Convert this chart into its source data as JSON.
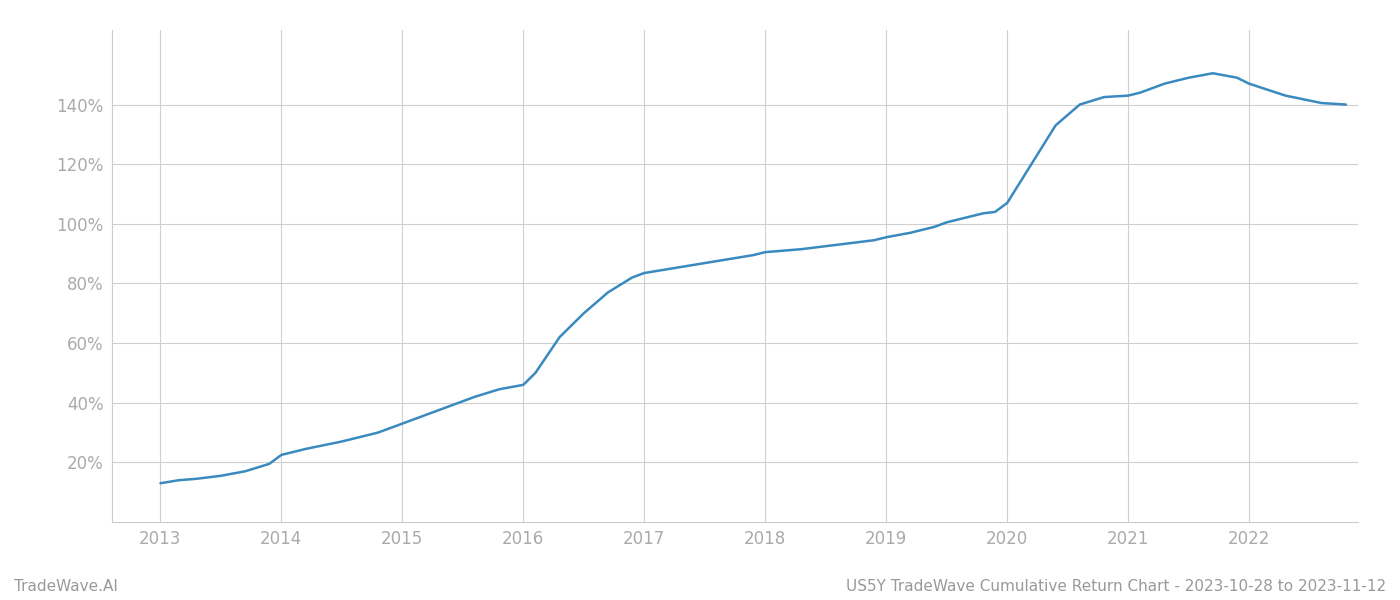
{
  "x_years": [
    2013.0,
    2013.15,
    2013.3,
    2013.5,
    2013.7,
    2013.9,
    2014.0,
    2014.2,
    2014.5,
    2014.8,
    2015.0,
    2015.2,
    2015.4,
    2015.6,
    2015.8,
    2016.0,
    2016.1,
    2016.2,
    2016.3,
    2016.5,
    2016.7,
    2016.9,
    2017.0,
    2017.3,
    2017.6,
    2017.9,
    2018.0,
    2018.3,
    2018.6,
    2018.9,
    2019.0,
    2019.2,
    2019.4,
    2019.5,
    2019.6,
    2019.7,
    2019.8,
    2019.9,
    2020.0,
    2020.2,
    2020.4,
    2020.6,
    2020.8,
    2021.0,
    2021.1,
    2021.2,
    2021.3,
    2021.5,
    2021.7,
    2021.9,
    2022.0,
    2022.3,
    2022.6,
    2022.8
  ],
  "y_values": [
    13.0,
    14.0,
    14.5,
    15.5,
    17.0,
    19.5,
    22.5,
    24.5,
    27.0,
    30.0,
    33.0,
    36.0,
    39.0,
    42.0,
    44.5,
    46.0,
    50.0,
    56.0,
    62.0,
    70.0,
    77.0,
    82.0,
    83.5,
    85.5,
    87.5,
    89.5,
    90.5,
    91.5,
    93.0,
    94.5,
    95.5,
    97.0,
    99.0,
    100.5,
    101.5,
    102.5,
    103.5,
    104.0,
    107.0,
    120.0,
    133.0,
    140.0,
    142.5,
    143.0,
    144.0,
    145.5,
    147.0,
    149.0,
    150.5,
    149.0,
    147.0,
    143.0,
    140.5,
    140.0
  ],
  "line_color": "#3a8abf",
  "background_color": "#ffffff",
  "grid_color": "#d0d0d0",
  "ylabel_values": [
    20,
    40,
    60,
    80,
    100,
    120,
    140
  ],
  "x_tick_labels": [
    "2013",
    "2014",
    "2015",
    "2016",
    "2017",
    "2018",
    "2019",
    "2020",
    "2021",
    "2022"
  ],
  "x_tick_positions": [
    2013,
    2014,
    2015,
    2016,
    2017,
    2018,
    2019,
    2020,
    2021,
    2022
  ],
  "xlim": [
    2012.6,
    2022.9
  ],
  "ylim": [
    0,
    165
  ],
  "footer_left": "TradeWave.AI",
  "footer_right": "US5Y TradeWave Cumulative Return Chart - 2023-10-28 to 2023-11-12",
  "footer_color": "#999999",
  "footer_fontsize": 11,
  "line_width": 1.8,
  "tick_label_color": "#aaaaaa",
  "tick_label_fontsize": 12
}
